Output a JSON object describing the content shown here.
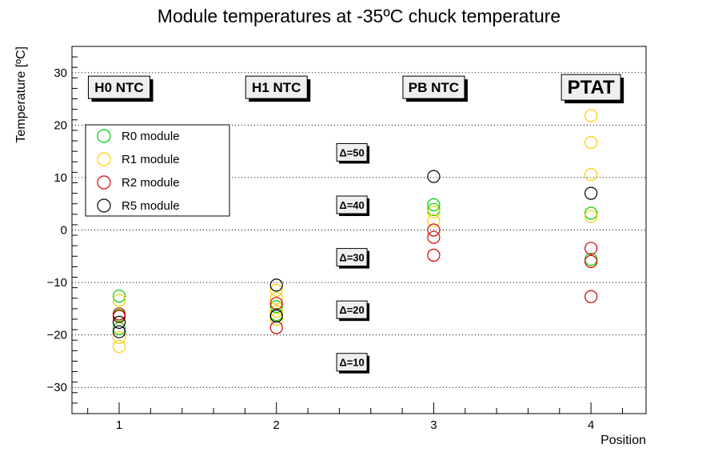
{
  "chart_data": {
    "type": "scatter",
    "title": "Module temperatures at -35ºC chuck temperature",
    "xlabel": "Position",
    "ylabel": "Temperature [ºC]",
    "xlim": [
      0.7,
      4.35
    ],
    "ylim": [
      -35,
      35
    ],
    "xticks": [
      1,
      2,
      3,
      4
    ],
    "yticks": [
      -30,
      -20,
      -10,
      0,
      10,
      20,
      30
    ],
    "grid": "horizontal dotted",
    "legend_position": "top-left",
    "series": [
      {
        "name": "R0 module",
        "color": "#00cc00",
        "points": [
          {
            "x": 1,
            "y": -12.6
          },
          {
            "x": 1,
            "y": -16.3
          },
          {
            "x": 1,
            "y": -18.8
          },
          {
            "x": 2,
            "y": -14.6
          },
          {
            "x": 2,
            "y": -16.1
          },
          {
            "x": 3,
            "y": 4.8
          },
          {
            "x": 3,
            "y": 3.9
          },
          {
            "x": 4,
            "y": 3.2
          },
          {
            "x": 4,
            "y": -5.6
          }
        ]
      },
      {
        "name": "R1 module",
        "color": "#ffcc00",
        "points": [
          {
            "x": 1,
            "y": -13.4
          },
          {
            "x": 1,
            "y": -20.5
          },
          {
            "x": 1,
            "y": -22.2
          },
          {
            "x": 2,
            "y": -11.5
          },
          {
            "x": 2,
            "y": -13.0
          },
          {
            "x": 2,
            "y": -15.5
          },
          {
            "x": 2,
            "y": -17.0
          },
          {
            "x": 3,
            "y": 3.4
          },
          {
            "x": 3,
            "y": 1.8
          },
          {
            "x": 4,
            "y": 21.8
          },
          {
            "x": 4,
            "y": 16.7
          },
          {
            "x": 4,
            "y": 10.6
          },
          {
            "x": 4,
            "y": 2.6
          }
        ]
      },
      {
        "name": "R2 module",
        "color": "#cc0000",
        "points": [
          {
            "x": 1,
            "y": -16.0
          },
          {
            "x": 1,
            "y": -16.5
          },
          {
            "x": 2,
            "y": -14.0
          },
          {
            "x": 2,
            "y": -18.6
          },
          {
            "x": 3,
            "y": 0.0
          },
          {
            "x": 3,
            "y": -1.4
          },
          {
            "x": 3,
            "y": -4.8
          },
          {
            "x": 4,
            "y": -3.5
          },
          {
            "x": 4,
            "y": -6.0
          },
          {
            "x": 4,
            "y": -12.7
          }
        ]
      },
      {
        "name": "R5 module",
        "color": "#000000",
        "points": [
          {
            "x": 1,
            "y": -17.6
          },
          {
            "x": 1,
            "y": -19.4
          },
          {
            "x": 2,
            "y": -10.5
          },
          {
            "x": 2,
            "y": -16.4
          },
          {
            "x": 3,
            "y": 10.2
          },
          {
            "x": 4,
            "y": 7.0
          }
        ]
      }
    ],
    "annotations": [
      {
        "text": "H0 NTC",
        "x": 1,
        "y": 27.2,
        "size": "medium"
      },
      {
        "text": "H1 NTC",
        "x": 2,
        "y": 27.2,
        "size": "medium"
      },
      {
        "text": "PB NTC",
        "x": 3,
        "y": 27.2,
        "size": "medium"
      },
      {
        "text": "PTAT",
        "x": 4,
        "y": 27.2,
        "size": "large"
      }
    ],
    "delta_labels": [
      {
        "text": "Δ=50",
        "x": 2.5,
        "y": 14.8
      },
      {
        "text": "Δ=40",
        "x": 2.5,
        "y": 4.8
      },
      {
        "text": "Δ=30",
        "x": 2.5,
        "y": -5.2
      },
      {
        "text": "Δ=20",
        "x": 2.5,
        "y": -15.2
      },
      {
        "text": "Δ=10",
        "x": 2.5,
        "y": -25.2
      }
    ]
  }
}
